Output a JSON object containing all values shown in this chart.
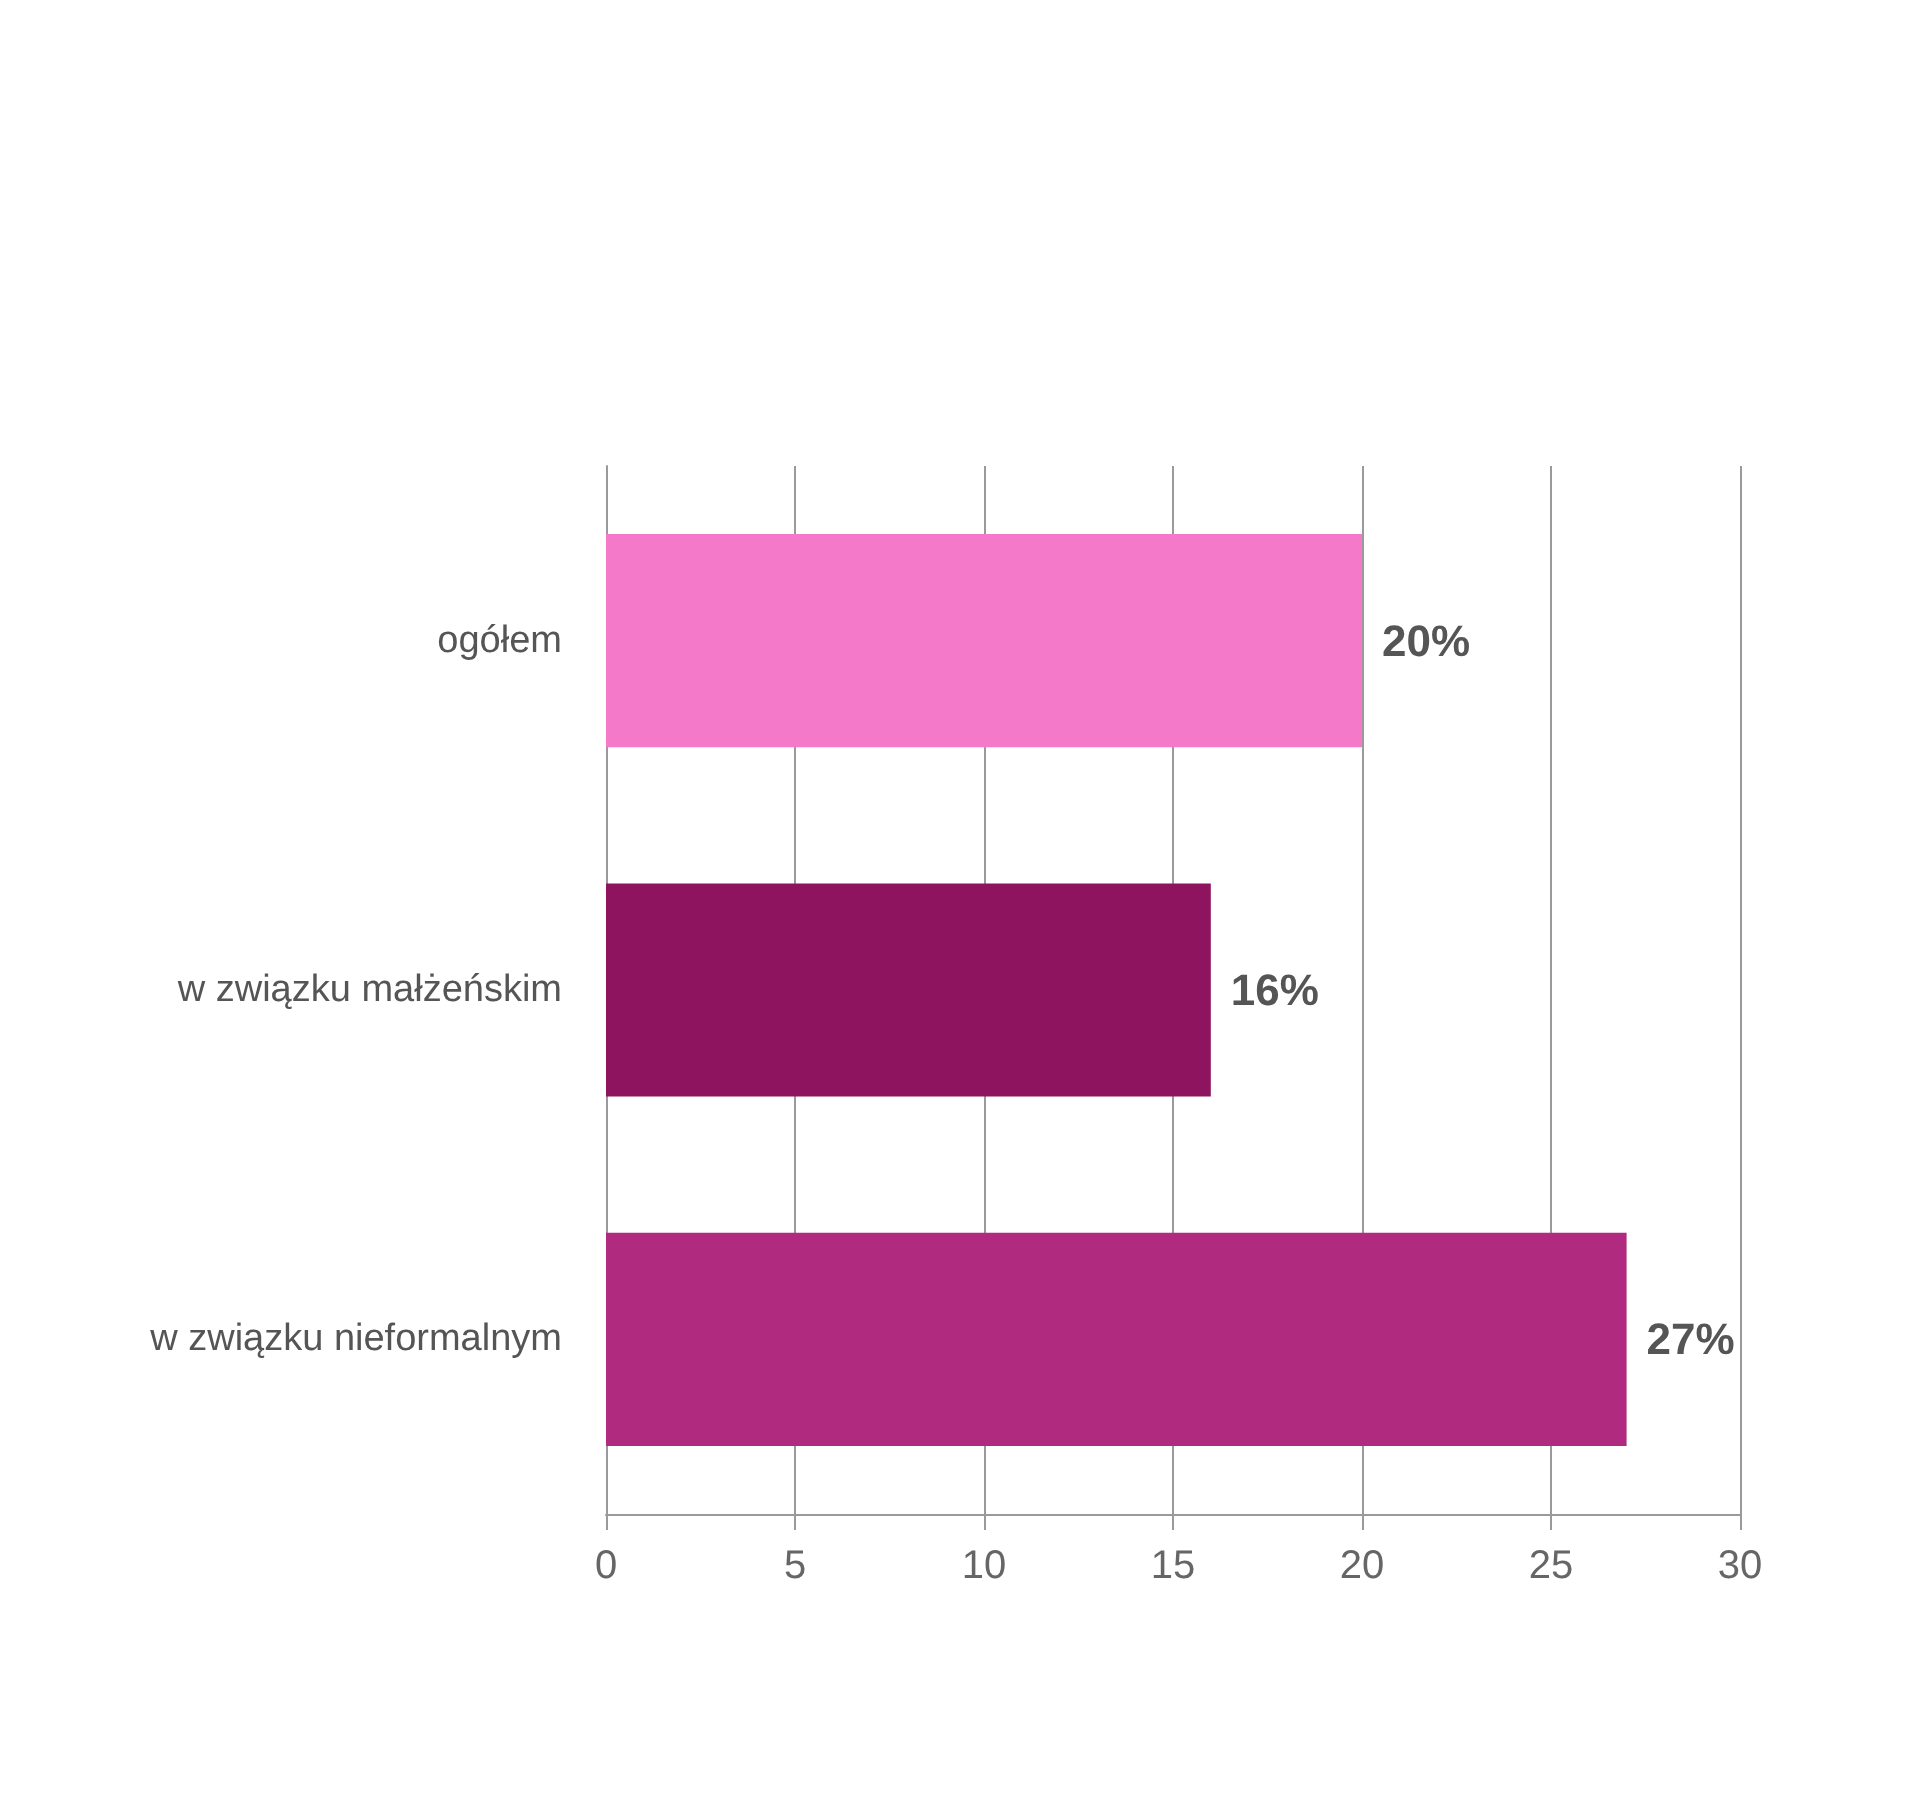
{
  "chart_data": {
    "type": "bar",
    "orientation": "horizontal",
    "categories": [
      "ogółem",
      "w związku małżeńskim",
      "w związku nieformalnym"
    ],
    "values": [
      20,
      16,
      27
    ],
    "colors": [
      "#f47ac9",
      "#8e1460",
      "#b02a7f"
    ],
    "value_labels": [
      "20%",
      "16%",
      "27%"
    ],
    "xlim": [
      0,
      30
    ],
    "xticks": [
      0,
      5,
      10,
      15,
      20,
      25,
      30
    ],
    "grid": "x"
  }
}
